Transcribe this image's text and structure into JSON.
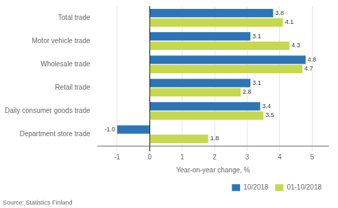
{
  "chart_data": {
    "type": "bar",
    "orientation": "horizontal",
    "categories": [
      "Total trade",
      "Motor vehicle trade",
      "Wholesale trade",
      "Retail trade",
      "Daily consumer goods trade",
      "Department store trade"
    ],
    "series": [
      {
        "name": "10/2018",
        "color": "#2E75B6",
        "values": [
          3.8,
          3.1,
          4.8,
          3.1,
          3.4,
          -1.0
        ],
        "value_labels": [
          "3.8",
          "3.1",
          "4.8",
          "3.1",
          "3.4",
          "-1.0"
        ]
      },
      {
        "name": "01-10/2018",
        "color": "#C5D84E",
        "values": [
          4.1,
          4.3,
          4.7,
          2.8,
          3.5,
          1.8
        ]
      }
    ],
    "x_label": "Year-on-year change, %",
    "xlim": [
      -1.6,
      5.5
    ],
    "xticks": [
      -1,
      0,
      1,
      2,
      3,
      4,
      5
    ],
    "grid": true,
    "legend": "lower right",
    "data_labels": true,
    "source": "Source: Statistics Finland"
  }
}
